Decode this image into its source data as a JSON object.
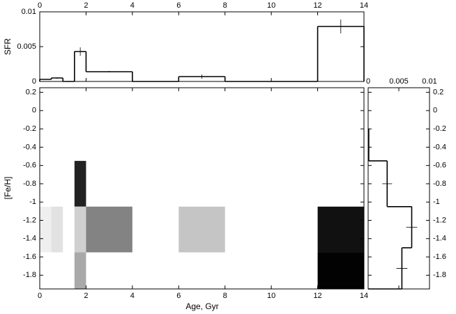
{
  "chart_data": [
    {
      "type": "histogram",
      "ylabel": "SFR",
      "bins": [
        0,
        0.5,
        1,
        1.5,
        2,
        4,
        6,
        8,
        12,
        14
      ],
      "values": [
        0.0003,
        0.0005,
        0,
        0.0043,
        0.0014,
        0,
        0.0007,
        0,
        0.0079
      ],
      "errors": [
        null,
        0.0001,
        null,
        0.0006,
        0.0001,
        null,
        0.0003,
        null,
        0.001
      ],
      "color": "#000000",
      "xlim": [
        0,
        14
      ],
      "xticks": [
        0,
        2,
        4,
        6,
        8,
        10,
        12,
        14
      ],
      "ylim": [
        0,
        0.01
      ],
      "yticks": [
        0,
        0.005,
        0.01
      ]
    },
    {
      "type": "heatmap",
      "xlabel": "Age, Gyr",
      "ylabel": "[Fe/H]",
      "xlim": [
        0,
        14
      ],
      "xticks": [
        0,
        2,
        4,
        6,
        8,
        10,
        12,
        14
      ],
      "ylim": [
        -1.95,
        0.25
      ],
      "yticks": [
        0.2,
        0,
        -0.2,
        -0.4,
        -0.6,
        -0.8,
        -1,
        -1.2,
        -1.4,
        -1.6,
        -1.8
      ],
      "cells": [
        {
          "x": [
            0,
            0.5
          ],
          "y": [
            -1.55,
            -1.05
          ],
          "color": "#efefef"
        },
        {
          "x": [
            0.5,
            1
          ],
          "y": [
            -1.55,
            -1.05
          ],
          "color": "#e2e2e2"
        },
        {
          "x": [
            1.5,
            2
          ],
          "y": [
            -1.05,
            -0.55
          ],
          "color": "#222222"
        },
        {
          "x": [
            1.5,
            2
          ],
          "y": [
            -1.55,
            -1.05
          ],
          "color": "#d0d0d0"
        },
        {
          "x": [
            1.5,
            2
          ],
          "y": [
            -1.95,
            -1.55
          ],
          "color": "#a9a9a9"
        },
        {
          "x": [
            2,
            4
          ],
          "y": [
            -1.55,
            -1.05
          ],
          "color": "#838383"
        },
        {
          "x": [
            6,
            8
          ],
          "y": [
            -1.55,
            -1.05
          ],
          "color": "#c5c5c5"
        },
        {
          "x": [
            12,
            14
          ],
          "y": [
            -1.55,
            -1.05
          ],
          "color": "#111111"
        },
        {
          "x": [
            12,
            14
          ],
          "y": [
            -1.95,
            -1.55
          ],
          "color": "#020202"
        }
      ]
    },
    {
      "type": "histogram",
      "orientation": "horizontal",
      "bins": [
        -1.95,
        -1.5,
        -1.05,
        -0.55,
        -0.2
      ],
      "values": [
        0.0055,
        0.0071,
        0.0031,
        0.0001
      ],
      "errors": [
        0.0009,
        0.0009,
        0.0008,
        null
      ],
      "color": "#000000",
      "xlim": [
        0,
        0.01
      ],
      "xticks": [
        0,
        0.005,
        0.01
      ]
    }
  ]
}
